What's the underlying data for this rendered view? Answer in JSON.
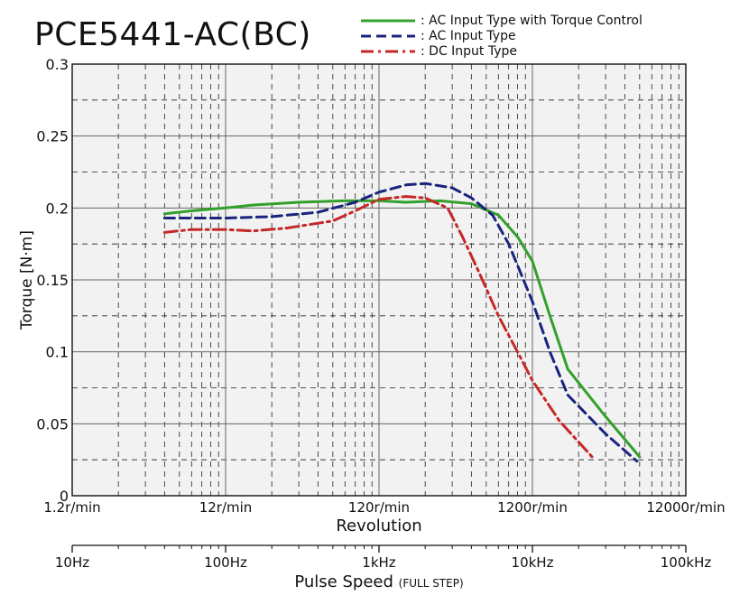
{
  "chart_data": {
    "type": "line",
    "title": "PCE5441-AC(BC)",
    "ylabel": "Torque [N·m]",
    "xlabel": "Revolution",
    "x2label": "Pulse Speed",
    "x2label_note": "(FULL STEP)",
    "x_scale": "log",
    "xlim": [
      10,
      100000
    ],
    "ylim": [
      0,
      0.3
    ],
    "grid": true,
    "legend_position": "top-right",
    "y_ticks": [
      {
        "value": 0,
        "label": "0"
      },
      {
        "value": 0.05,
        "label": "0.05"
      },
      {
        "value": 0.1,
        "label": "0.1"
      },
      {
        "value": 0.15,
        "label": "0.15"
      },
      {
        "value": 0.2,
        "label": "0.2"
      },
      {
        "value": 0.25,
        "label": "0.25"
      },
      {
        "value": 0.3,
        "label": "0.3"
      }
    ],
    "x_ticks_revolution": [
      {
        "value": 10,
        "label": "1.2r/min"
      },
      {
        "value": 100,
        "label": "12r/min"
      },
      {
        "value": 1000,
        "label": "120r/min"
      },
      {
        "value": 10000,
        "label": "1200r/min"
      },
      {
        "value": 100000,
        "label": "12000r/min"
      }
    ],
    "x_ticks_pulse": [
      {
        "value": 10,
        "label": "10Hz"
      },
      {
        "value": 100,
        "label": "100Hz"
      },
      {
        "value": 1000,
        "label": "1kHz"
      },
      {
        "value": 10000,
        "label": "10kHz"
      },
      {
        "value": 100000,
        "label": "100kHz"
      }
    ],
    "series": [
      {
        "name": ": AC Input Type with Torque Control",
        "color": "#33a02c",
        "dash": "solid",
        "x": [
          40,
          60,
          100,
          150,
          300,
          600,
          1000,
          1500,
          2500,
          4000,
          6000,
          8000,
          10000,
          13000,
          17000,
          30000,
          50000
        ],
        "y": [
          0.196,
          0.198,
          0.2,
          0.202,
          0.204,
          0.205,
          0.205,
          0.204,
          0.205,
          0.203,
          0.195,
          0.18,
          0.163,
          0.125,
          0.088,
          0.055,
          0.027
        ]
      },
      {
        "name": ": AC Input Type",
        "color": "#1a237e",
        "dash": "dash",
        "x": [
          40,
          100,
          200,
          400,
          700,
          1000,
          1500,
          2000,
          3000,
          4000,
          5500,
          7000,
          10000,
          13000,
          17000,
          30000,
          48000
        ],
        "y": [
          0.193,
          0.193,
          0.194,
          0.197,
          0.204,
          0.211,
          0.216,
          0.217,
          0.214,
          0.207,
          0.195,
          0.175,
          0.135,
          0.1,
          0.07,
          0.043,
          0.024
        ]
      },
      {
        "name": ": DC Input Type",
        "color": "#c62828",
        "dash": "dashdot",
        "x": [
          40,
          60,
          100,
          150,
          250,
          500,
          700,
          1000,
          1500,
          2000,
          2800,
          3500,
          4500,
          6000,
          8000,
          10000,
          15000,
          25000
        ],
        "y": [
          0.183,
          0.185,
          0.185,
          0.184,
          0.186,
          0.191,
          0.198,
          0.206,
          0.208,
          0.207,
          0.2,
          0.18,
          0.155,
          0.125,
          0.1,
          0.08,
          0.052,
          0.026
        ]
      }
    ]
  }
}
